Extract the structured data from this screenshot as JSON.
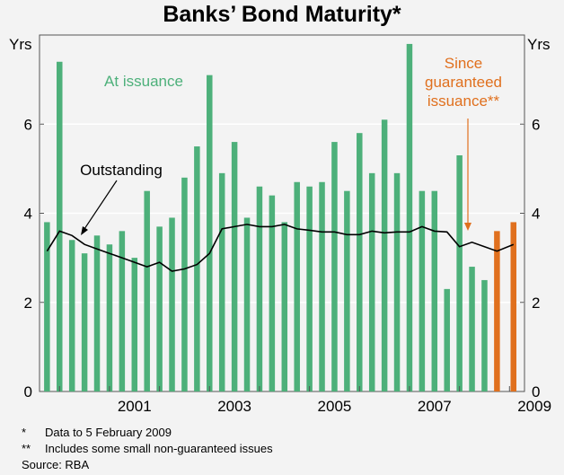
{
  "colors": {
    "background": "#f3f3f3",
    "green": "#4db07a",
    "orange": "#e0701e",
    "green_text": "#4db07a",
    "orange_text": "#e0701e",
    "line": "#000000",
    "grid": "#ffffff"
  },
  "notes": [
    {
      "mark": "*",
      "text": "Data to 5 February 2009"
    },
    {
      "mark": "**",
      "text": "Includes some small non-guaranteed issues"
    }
  ],
  "source": "Source: RBA",
  "chart_data": {
    "type": "bar",
    "title": "Banks’ Bond Maturity*",
    "left_axis_label": "Yrs",
    "right_axis_label": "Yrs",
    "ylim": [
      0,
      8
    ],
    "yticks": [
      0,
      2,
      4,
      6
    ],
    "grid": true,
    "xlim": [
      1999.6,
      2009.3
    ],
    "x_tick_labels": [
      "2001",
      "2003",
      "2005",
      "2007",
      "2009"
    ],
    "x_tick_values": [
      2001,
      2003,
      2005,
      2007,
      2009
    ],
    "series": [
      {
        "name": "At issuance",
        "kind": "bar",
        "color": "green",
        "x": [
          1999.75,
          2000.0,
          2000.25,
          2000.5,
          2000.75,
          2001.0,
          2001.25,
          2001.5,
          2001.75,
          2002.0,
          2002.25,
          2002.5,
          2002.75,
          2003.0,
          2003.25,
          2003.5,
          2003.75,
          2004.0,
          2004.25,
          2004.5,
          2004.75,
          2005.0,
          2005.25,
          2005.5,
          2005.75,
          2006.0,
          2006.25,
          2006.5,
          2006.75,
          2007.0,
          2007.25,
          2007.5,
          2007.75,
          2008.0,
          2008.25,
          2008.5
        ],
        "values": [
          3.8,
          7.4,
          3.4,
          3.1,
          3.5,
          3.3,
          3.6,
          3.0,
          4.5,
          3.7,
          3.9,
          4.8,
          5.5,
          7.1,
          4.9,
          5.6,
          3.9,
          4.6,
          4.4,
          3.8,
          4.7,
          4.6,
          4.7,
          5.6,
          4.5,
          5.8,
          4.9,
          6.1,
          4.9,
          7.8,
          4.5,
          4.5,
          2.3,
          5.3,
          2.8,
          2.5
        ]
      },
      {
        "name": "Since guaranteed issuance**",
        "kind": "bar",
        "color": "orange",
        "x": [
          2008.75,
          2009.08
        ],
        "values": [
          3.6,
          3.8
        ]
      },
      {
        "name": "Outstanding",
        "kind": "line",
        "color": "line",
        "x": [
          1999.75,
          2000.0,
          2000.25,
          2000.5,
          2000.75,
          2001.0,
          2001.25,
          2001.5,
          2001.75,
          2002.0,
          2002.25,
          2002.5,
          2002.75,
          2003.0,
          2003.25,
          2003.5,
          2003.75,
          2004.0,
          2004.25,
          2004.5,
          2004.75,
          2005.0,
          2005.25,
          2005.5,
          2005.75,
          2006.0,
          2006.25,
          2006.5,
          2006.75,
          2007.0,
          2007.25,
          2007.5,
          2007.75,
          2008.0,
          2008.25,
          2008.5,
          2008.75,
          2009.08
        ],
        "values": [
          3.15,
          3.6,
          3.5,
          3.3,
          3.2,
          3.1,
          3.0,
          2.9,
          2.8,
          2.9,
          2.7,
          2.75,
          2.85,
          3.1,
          3.65,
          3.7,
          3.75,
          3.7,
          3.7,
          3.75,
          3.65,
          3.62,
          3.58,
          3.58,
          3.52,
          3.52,
          3.6,
          3.56,
          3.58,
          3.58,
          3.7,
          3.6,
          3.58,
          3.25,
          3.35,
          3.25,
          3.15,
          3.3
        ]
      }
    ],
    "annotations": [
      {
        "text": "At issuance",
        "color": "green_text"
      },
      {
        "text": "Outstanding",
        "color": "line"
      },
      {
        "lines": [
          "Since",
          "guaranteed",
          "issuance**"
        ],
        "color": "orange_text"
      }
    ]
  }
}
